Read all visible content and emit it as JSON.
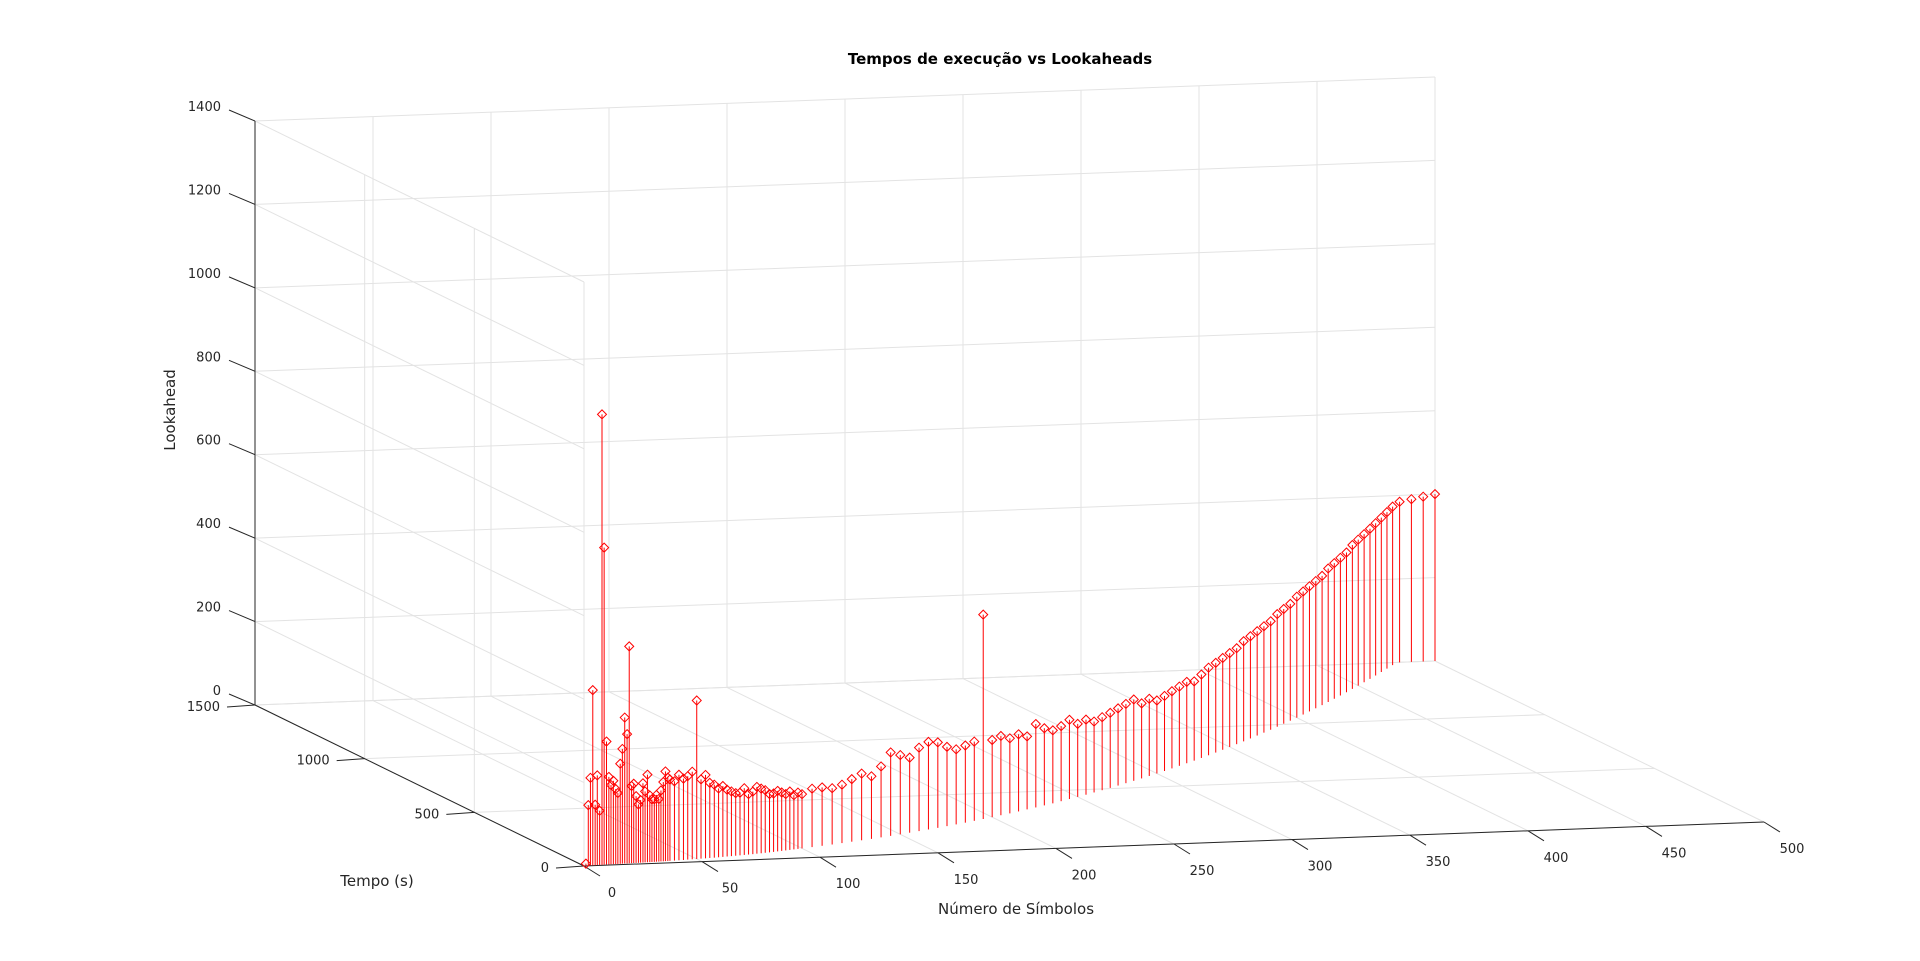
{
  "chart_data": {
    "type": "stem3",
    "title": "Tempos de execução vs Lookaheads",
    "xlabel": "Número de Símbolos",
    "ylabel": "Tempo (s)",
    "zlabel": "Lookahead",
    "xlim": [
      0,
      500
    ],
    "ylim": [
      0,
      1500
    ],
    "zlim": [
      0,
      1400
    ],
    "xticks": [
      "0",
      "50",
      "100",
      "150",
      "200",
      "250",
      "300",
      "350",
      "400",
      "450",
      "500"
    ],
    "yticks": [
      "0",
      "500",
      "1000",
      "1500"
    ],
    "zticks": [
      "0",
      "200",
      "400",
      "600",
      "800",
      "1000",
      "1200",
      "1400"
    ],
    "grid": true,
    "marker": "diamond",
    "series": [
      {
        "color": "#ff0000",
        "x": [
          1,
          2,
          3,
          4,
          5,
          6,
          7,
          8,
          9,
          10,
          11,
          12,
          13,
          14,
          15,
          16,
          17,
          18,
          19,
          20,
          21,
          22,
          23,
          24,
          25,
          26,
          27,
          28,
          29,
          30,
          31,
          32,
          33,
          34,
          35,
          36,
          37,
          38,
          40,
          42,
          44,
          46,
          48,
          50,
          52,
          54,
          56,
          58,
          60,
          62,
          64,
          66,
          68,
          70,
          72,
          74,
          76,
          78,
          80,
          82,
          84,
          86,
          88,
          90,
          92,
          94,
          96,
          98,
          100,
          105,
          110,
          115,
          120,
          125,
          130,
          135,
          140,
          145,
          150,
          155,
          160,
          165,
          170,
          175,
          180,
          185,
          190,
          195,
          200,
          205,
          210,
          215,
          220,
          225,
          230,
          235,
          240,
          245,
          250,
          255,
          260,
          265,
          270,
          275,
          280,
          285,
          290,
          295,
          300,
          305,
          310,
          315,
          320,
          325,
          330,
          335,
          340,
          345,
          350,
          355,
          360,
          365,
          370,
          375,
          380,
          385,
          390,
          395,
          400,
          405,
          410,
          415,
          420,
          425,
          430,
          435,
          440,
          445,
          450,
          455,
          460,
          465,
          470,
          475,
          480,
          485,
          490,
          495,
          500
        ],
        "y": [
          2,
          2,
          3,
          3,
          3,
          4,
          4,
          4,
          5,
          5,
          5,
          6,
          6,
          6,
          7,
          7,
          8,
          8,
          8,
          9,
          9,
          10,
          10,
          10,
          11,
          11,
          12,
          12,
          12,
          13,
          13,
          14,
          14,
          15,
          15,
          16,
          16,
          17,
          18,
          19,
          20,
          22,
          23,
          24,
          26,
          27,
          29,
          30,
          32,
          34,
          36,
          38,
          40,
          42,
          44,
          46,
          48,
          51,
          53,
          56,
          58,
          61,
          64,
          67,
          70,
          73,
          76,
          79,
          82,
          90,
          98,
          106,
          115,
          124,
          133,
          142,
          152,
          162,
          172,
          183,
          194,
          205,
          216,
          228,
          240,
          252,
          265,
          278,
          291,
          305,
          318,
          332,
          347,
          361,
          376,
          391,
          407,
          423,
          439,
          455,
          472,
          489,
          506,
          524,
          542,
          560,
          578,
          597,
          616,
          635,
          655,
          675,
          695,
          715,
          736,
          757,
          778,
          800,
          822,
          844,
          866,
          889,
          912,
          935,
          958,
          982,
          1006,
          1030,
          1054,
          1079,
          1104,
          1129,
          1154,
          1180,
          1206,
          1232,
          1258,
          1285,
          1312,
          1339,
          1366,
          1394,
          1422,
          1450,
          1478,
          1500,
          1500,
          1500,
          1500
        ],
        "z": [
          5,
          145,
          210,
          420,
          145,
          215,
          130,
          1080,
          760,
          295,
          210,
          190,
          200,
          180,
          170,
          240,
          275,
          350,
          310,
          520,
          185,
          190,
          160,
          140,
          150,
          190,
          170,
          210,
          160,
          150,
          150,
          160,
          150,
          170,
          190,
          215,
          200,
          195,
          190,
          205,
          195,
          200,
          210,
          380,
          190,
          200,
          180,
          175,
          165,
          170,
          160,
          155,
          150,
          150,
          160,
          145,
          150,
          160,
          155,
          150,
          140,
          140,
          145,
          140,
          135,
          140,
          130,
          135,
          130,
          140,
          140,
          135,
          140,
          150,
          160,
          150,
          170,
          200,
          190,
          180,
          200,
          210,
          205,
          190,
          180,
          185,
          190,
          490,
          185,
          190,
          180,
          185,
          175,
          200,
          185,
          175,
          180,
          190,
          175,
          180,
          170,
          175,
          180,
          185,
          190,
          195,
          180,
          185,
          175,
          180,
          185,
          190,
          195,
          190,
          200,
          210,
          215,
          220,
          225,
          230,
          240,
          245,
          250,
          255,
          260,
          270,
          275,
          280,
          290,
          295,
          300,
          305,
          310,
          320,
          325,
          330,
          335,
          345,
          350,
          355,
          360,
          365,
          370,
          375,
          380,
          385,
          390,
          395,
          400
        ]
      }
    ]
  }
}
